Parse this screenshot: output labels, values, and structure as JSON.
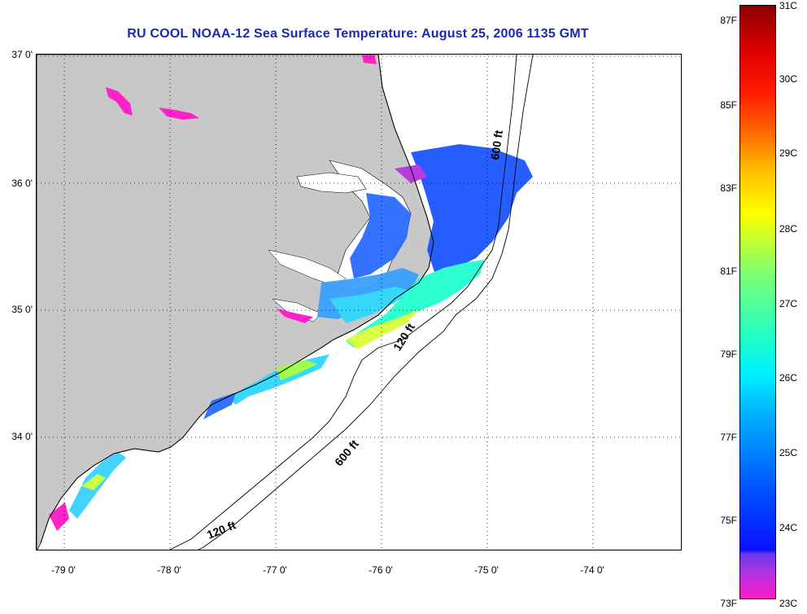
{
  "title": "RU COOL  NOAA-12  Sea Surface Temperature:  August 25, 2006 1135 GMT",
  "latitude_labels": [
    "37 0'",
    "36 0'",
    "35 0'",
    "34 0'"
  ],
  "longitude_labels": [
    "-79 0'",
    "-78 0'",
    "-77 0'",
    "-76 0'",
    "-75 0'",
    "-74 0'"
  ],
  "colorbar": {
    "fahrenheit": [
      "87F",
      "85F",
      "83F",
      "81F",
      "79F",
      "77F",
      "75F",
      "73F"
    ],
    "celsius": [
      "31C",
      "30C",
      "29C",
      "28C",
      "27C",
      "26C",
      "25C",
      "24C",
      "23C"
    ]
  },
  "contour_labels": {
    "offshore_600": "600 ft",
    "offshore_120": "120 ft",
    "south_600": "600 ft",
    "south_120": "120 ft"
  },
  "colors": {
    "title": "#1a2bb0",
    "land": "#c8c8c8",
    "cloud": "#ffffff"
  }
}
